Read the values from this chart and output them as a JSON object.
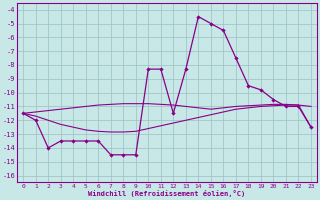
{
  "xlabel": "Windchill (Refroidissement éolien,°C)",
  "x": [
    0,
    1,
    2,
    3,
    4,
    5,
    6,
    7,
    8,
    9,
    10,
    11,
    12,
    13,
    14,
    15,
    16,
    17,
    18,
    19,
    20,
    21,
    22,
    23
  ],
  "windchill": [
    -11.5,
    -12.0,
    -14.0,
    -13.5,
    -13.5,
    -13.5,
    -13.5,
    -14.5,
    -14.5,
    -14.5,
    -8.3,
    -8.3,
    -11.5,
    -8.3,
    -4.5,
    -5.0,
    -5.5,
    -7.5,
    -9.5,
    -9.8,
    -10.5,
    -11.0,
    -11.0,
    -12.5
  ],
  "line_upper": [
    -11.5,
    -11.4,
    -11.3,
    -11.2,
    -11.1,
    -11.0,
    -10.9,
    -10.85,
    -10.8,
    -10.8,
    -10.8,
    -10.85,
    -10.9,
    -11.0,
    -11.1,
    -11.2,
    -11.1,
    -11.0,
    -10.95,
    -10.9,
    -10.85,
    -10.85,
    -10.9,
    -11.0
  ],
  "line_lower": [
    -11.5,
    -11.7,
    -12.0,
    -12.3,
    -12.5,
    -12.7,
    -12.8,
    -12.85,
    -12.85,
    -12.8,
    -12.6,
    -12.4,
    -12.2,
    -12.0,
    -11.8,
    -11.6,
    -11.4,
    -11.2,
    -11.1,
    -11.0,
    -10.95,
    -10.9,
    -10.9,
    -12.5
  ],
  "ylim": [
    -16.5,
    -3.5
  ],
  "xlim": [
    -0.5,
    23.5
  ],
  "yticks": [
    -4,
    -5,
    -6,
    -7,
    -8,
    -9,
    -10,
    -11,
    -12,
    -13,
    -14,
    -15,
    -16
  ],
  "xticks": [
    0,
    1,
    2,
    3,
    4,
    5,
    6,
    7,
    8,
    9,
    10,
    11,
    12,
    13,
    14,
    15,
    16,
    17,
    18,
    19,
    20,
    21,
    22,
    23
  ],
  "line_color": "#880088",
  "bg_color": "#c8e8e8",
  "grid_color": "#9dbfbf",
  "spine_color": "#880088"
}
